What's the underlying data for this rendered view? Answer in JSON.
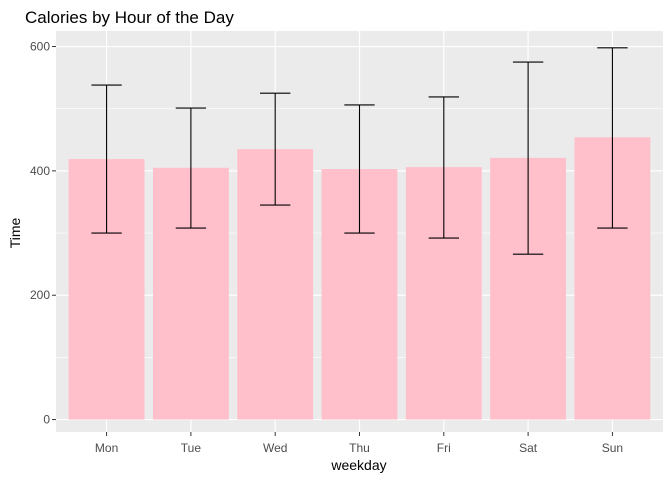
{
  "chart_data": {
    "type": "bar",
    "title": "Calories by Hour of the Day",
    "xlabel": "weekday",
    "ylabel": "Time",
    "categories": [
      "Mon",
      "Tue",
      "Wed",
      "Thu",
      "Fri",
      "Sat",
      "Sun"
    ],
    "values": [
      419,
      405,
      435,
      403,
      406,
      421,
      454
    ],
    "error_low": [
      300,
      308,
      345,
      300,
      292,
      266,
      308
    ],
    "error_high": [
      538,
      501,
      525,
      506,
      519,
      575,
      598
    ],
    "ylim": [
      -20,
      625
    ],
    "yticks": [
      0,
      200,
      400,
      600
    ],
    "grid": true,
    "bar_color": "#FFC0CB",
    "panel_color": "#EBEBEB",
    "grid_color": "#FFFFFF",
    "errorbar_color": "#000000"
  }
}
